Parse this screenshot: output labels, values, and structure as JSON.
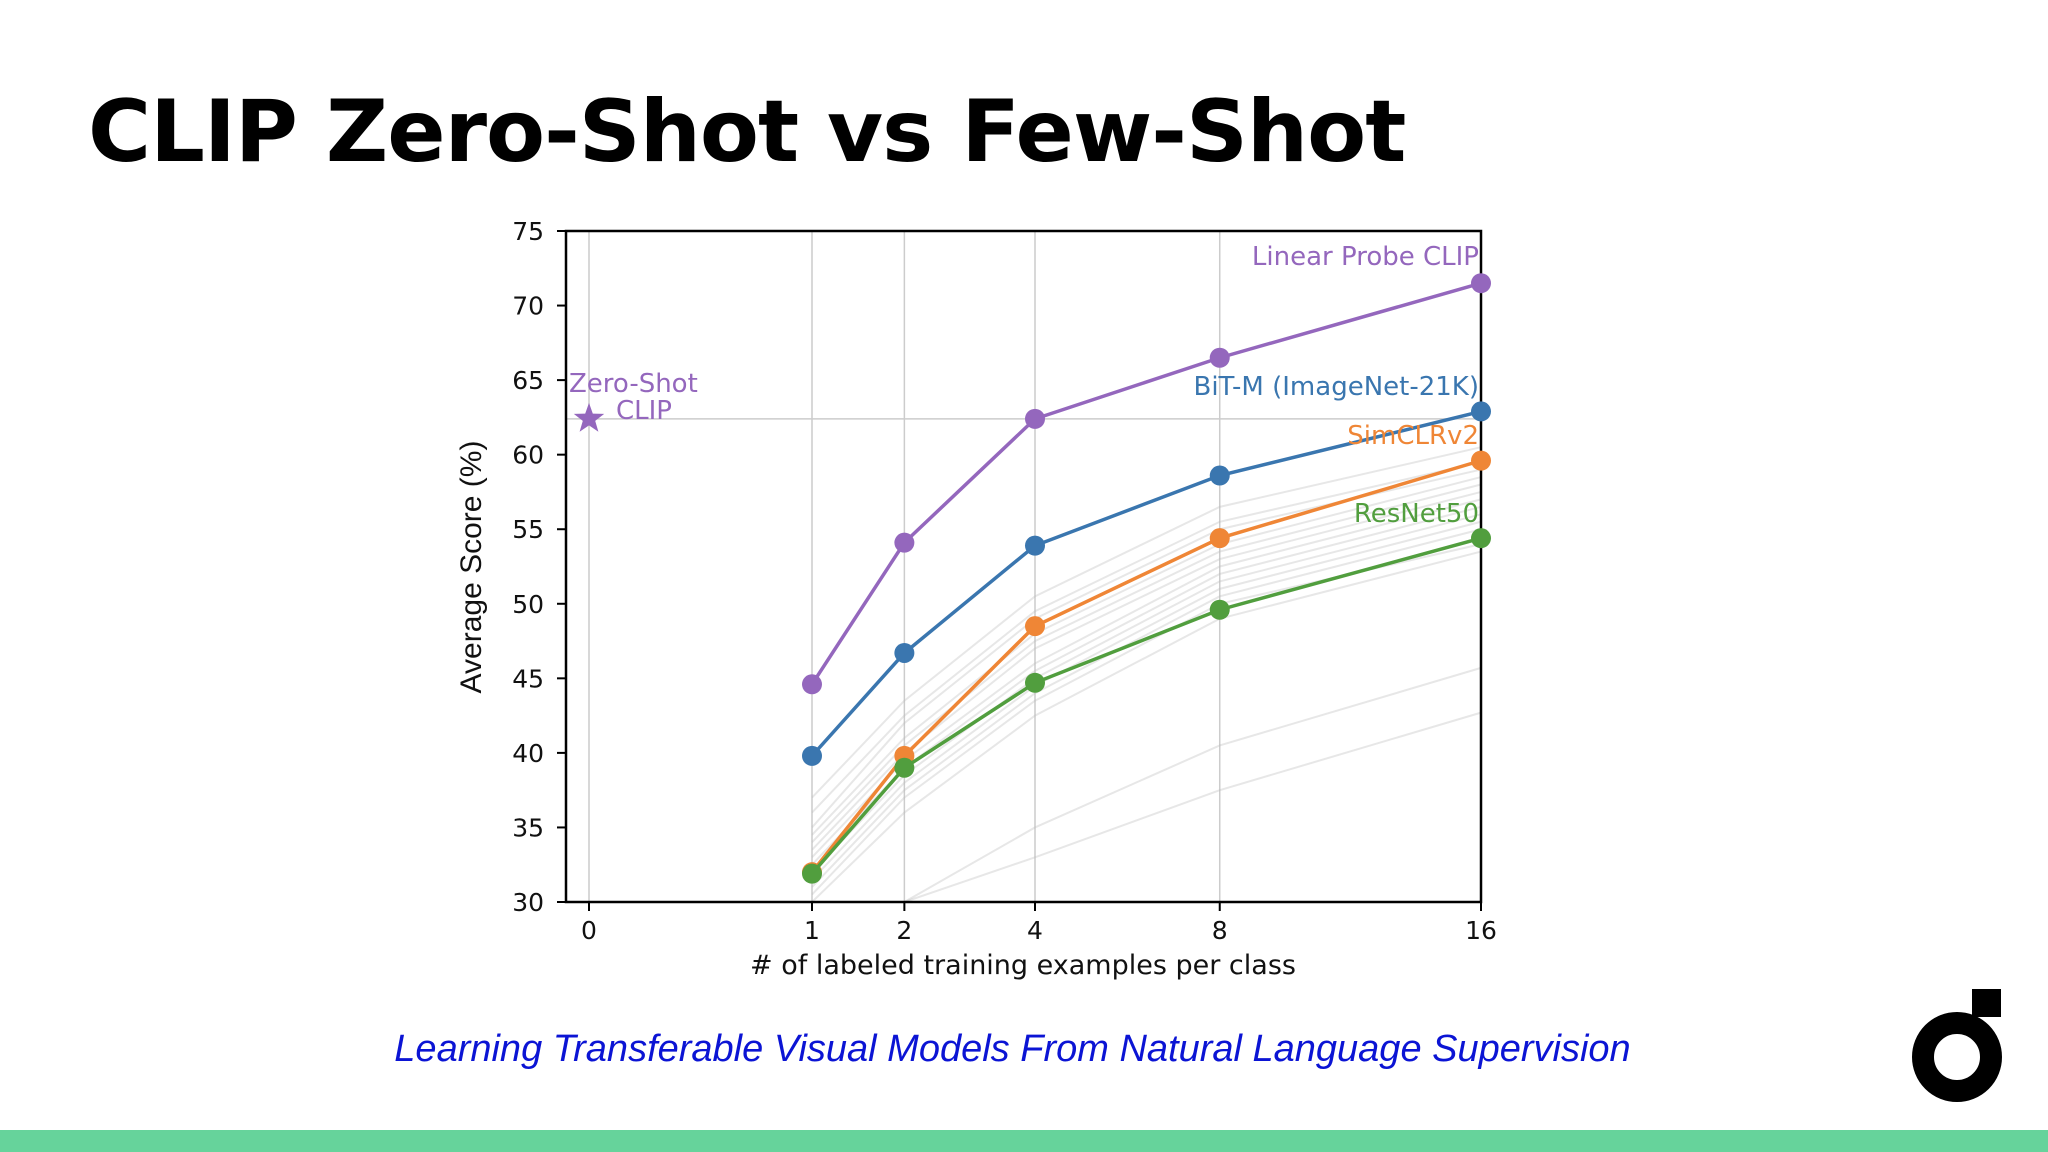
{
  "slide": {
    "title": "CLIP Zero-Shot vs Few-Shot",
    "paper_title": "Learning Transferable Visual Models From Natural Language Supervision",
    "logo_icon": "brand-logo-icon",
    "bottom_bar_color": "#66d39b",
    "link_color": "#0b14d4"
  },
  "chart_data": {
    "type": "line",
    "xlabel": "# of labeled training examples per class",
    "ylabel": "Average Score (%)",
    "x_ticks": [
      0,
      1,
      2,
      4,
      8,
      16
    ],
    "y_ticks": [
      30,
      35,
      40,
      45,
      50,
      55,
      60,
      65,
      70,
      75
    ],
    "xlim": [
      -0.4,
      16
    ],
    "ylim": [
      30,
      75
    ],
    "x_scale": "sqrt",
    "grid": "vertical lines at x ticks",
    "x": [
      1,
      2,
      4,
      8,
      16
    ],
    "series": [
      {
        "name": "Linear Probe CLIP",
        "color": "#9467bd",
        "values": [
          44.6,
          54.1,
          62.4,
          66.5,
          71.5
        ]
      },
      {
        "name": "BiT-M (ImageNet-21K)",
        "color": "#3a76af",
        "values": [
          39.8,
          46.7,
          53.9,
          58.6,
          62.9
        ]
      },
      {
        "name": "SimCLRv2",
        "color": "#ef8636",
        "values": [
          32.0,
          39.8,
          48.5,
          54.4,
          59.6
        ]
      },
      {
        "name": "ResNet50",
        "color": "#519e3e",
        "values": [
          31.9,
          39.0,
          44.7,
          49.6,
          54.4
        ]
      }
    ],
    "zero_shot": {
      "label_line1": "Zero-Shot",
      "label_line2": "CLIP",
      "x": 0,
      "y": 62.4,
      "color": "#9467bd",
      "marker": "star"
    },
    "background_series": {
      "color": "#bbbbbb",
      "description_values": [
        [
          37.0,
          43.5,
          50.5,
          56.5,
          60.5
        ],
        [
          36.0,
          42.5,
          49.5,
          55.5,
          59.5
        ],
        [
          35.0,
          42.0,
          49.0,
          55.0,
          59.0
        ],
        [
          34.5,
          41.0,
          48.0,
          54.0,
          58.5
        ],
        [
          34.0,
          40.5,
          47.5,
          53.5,
          58.0
        ],
        [
          33.5,
          40.0,
          47.0,
          53.0,
          57.5
        ],
        [
          33.0,
          39.5,
          46.0,
          52.5,
          57.0
        ],
        [
          32.5,
          39.0,
          45.5,
          52.0,
          56.5
        ],
        [
          32.0,
          38.5,
          45.0,
          51.5,
          56.0
        ],
        [
          31.5,
          38.0,
          44.5,
          51.0,
          55.5
        ],
        [
          31.0,
          37.5,
          44.0,
          50.5,
          55.0
        ],
        [
          30.5,
          37.0,
          43.5,
          50.0,
          54.0
        ],
        [
          30.0,
          36.0,
          42.5,
          49.0,
          53.5
        ],
        [
          28.0,
          30.0,
          35.0,
          40.5,
          45.7
        ],
        [
          26.0,
          28.5,
          33.0,
          37.5,
          42.7
        ]
      ]
    }
  }
}
